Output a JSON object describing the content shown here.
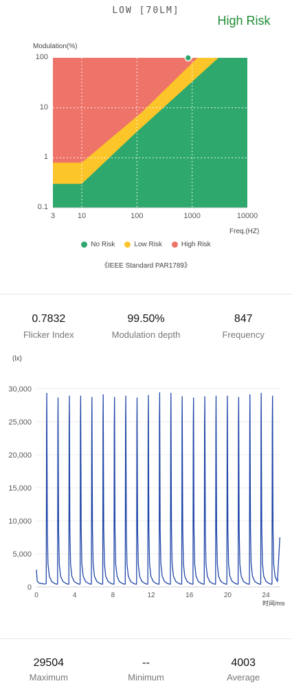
{
  "header": {
    "mode_label": "LOW [70LM]",
    "risk_status": "High Risk",
    "risk_color": "#1e8c34"
  },
  "risk_chart": {
    "y_axis_title": "Modulation(%)",
    "x_axis_title": "Freq.(HZ)",
    "y_ticks": [
      "100",
      "10",
      "1",
      "0.1"
    ],
    "x_ticks": [
      "3",
      "10",
      "100",
      "1000",
      "10000"
    ],
    "marker": {
      "frequency": 847,
      "modulation": 99.5
    },
    "colors": {
      "no_risk": "#2ea86c",
      "low_risk": "#fcc52a",
      "high_risk": "#ee7368"
    },
    "legend": [
      {
        "label": "No Risk",
        "color": "#2ea86c"
      },
      {
        "label": "Low Risk",
        "color": "#fcc52a"
      },
      {
        "label": "High Risk",
        "color": "#ee7368"
      }
    ],
    "standard_note": "《IEEE Standard PAR1789》"
  },
  "metrics": [
    {
      "value": "0.7832",
      "label": "Flicker Index"
    },
    {
      "value": "99.50%",
      "label": "Modulation depth"
    },
    {
      "value": "847",
      "label": "Frequency"
    }
  ],
  "waveform": {
    "y_unit": "(lx)",
    "x_unit": "时间/ms",
    "y_ticks": [
      "30,000",
      "25,000",
      "20,000",
      "15,000",
      "10,000",
      "5,000",
      "0"
    ],
    "x_ticks": [
      "0",
      "4",
      "8",
      "12",
      "16",
      "20",
      "24"
    ],
    "line_color": "#1f45a8"
  },
  "summary": [
    {
      "value": "29504",
      "label": "Maximum"
    },
    {
      "value": "--",
      "label": "Minimum"
    },
    {
      "value": "4003",
      "label": "Average"
    }
  ],
  "chart_data": [
    {
      "type": "area",
      "title": "",
      "xlabel": "Freq.(HZ)",
      "ylabel": "Modulation(%)",
      "x_scale": "log",
      "y_scale": "log",
      "xlim": [
        3,
        10000
      ],
      "ylim": [
        0.1,
        100
      ],
      "grid": true,
      "legend_position": "bottom",
      "series": [
        {
          "name": "No Risk",
          "x": [
            3,
            10,
            90,
            3000
          ],
          "y": [
            0.3,
            0.3,
            3,
            100
          ]
        },
        {
          "name": "Low Risk",
          "x": [
            3,
            10,
            120,
            1250
          ],
          "y": [
            0.8,
            0.8,
            8,
            100
          ]
        },
        {
          "name": "High Risk",
          "x": [
            3,
            10000
          ],
          "y": [
            100,
            100
          ]
        }
      ],
      "points": [
        {
          "x": 847,
          "y": 99.5
        }
      ]
    },
    {
      "type": "line",
      "title": "",
      "xlabel": "时间/ms",
      "ylabel": "(lx)",
      "xlim": [
        0,
        25.5
      ],
      "ylim": [
        0,
        30000
      ],
      "grid": true,
      "period_ms": 1.18,
      "series": [
        {
          "peak_times": [
            1.05,
            2.23,
            3.41,
            4.59,
            5.77,
            6.95,
            8.13,
            9.31,
            10.49,
            11.67,
            12.85,
            14.03,
            15.21,
            16.39,
            17.57,
            18.75,
            19.93,
            21.11,
            22.29,
            23.47,
            24.65
          ],
          "peak_values": [
            29300,
            28600,
            28900,
            28900,
            28700,
            29100,
            28700,
            28900,
            28600,
            29000,
            29400,
            29300,
            28800,
            28600,
            28800,
            28900,
            28900,
            28700,
            29100,
            29300,
            28900
          ],
          "baseline": 400
        }
      ]
    }
  ]
}
